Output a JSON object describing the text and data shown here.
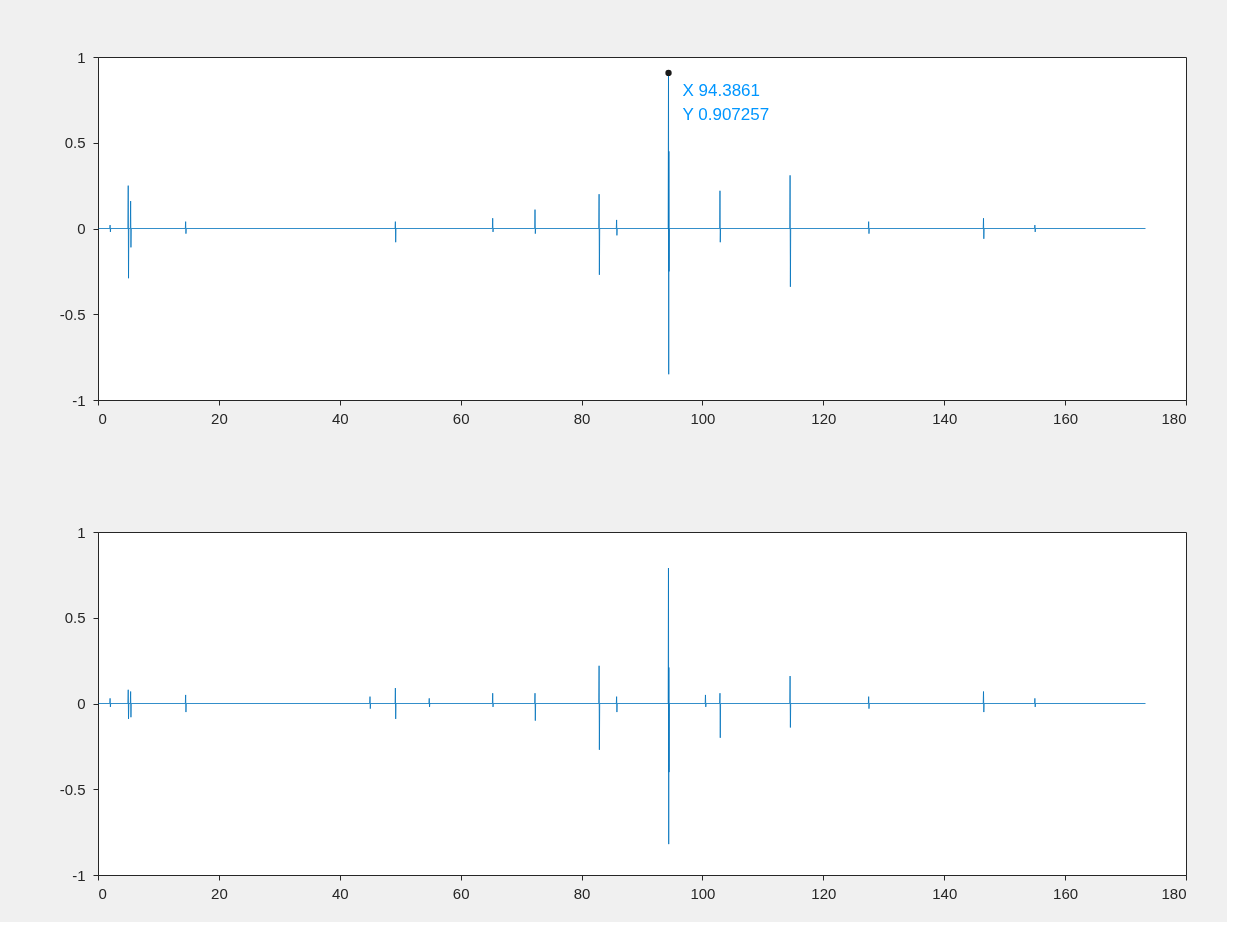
{
  "chart_data": [
    {
      "type": "line",
      "xlim": [
        0,
        180
      ],
      "xticks": [
        0,
        20,
        40,
        60,
        80,
        100,
        120,
        140,
        160,
        180
      ],
      "ylim": [
        -1,
        1
      ],
      "yticks": [
        -1,
        -0.5,
        0,
        0.5,
        1
      ],
      "grid": false,
      "annotations": [
        {
          "text": "X 94.3861\nY 0.907257",
          "x": 94.3861,
          "y": 0.907257
        }
      ],
      "series": [
        {
          "color": "#0072bd",
          "x": [
            0.1,
            1.95,
            2.0,
            2.05,
            2.1,
            4.95,
            5.0,
            5.05,
            5.1,
            5.35,
            5.4,
            5.45,
            5.5,
            14.45,
            14.5,
            14.55,
            14.6,
            49.15,
            49.2,
            49.25,
            49.3,
            65.25,
            65.3,
            65.35,
            65.4,
            72.25,
            72.3,
            72.35,
            72.4,
            82.85,
            82.9,
            82.95,
            83.0,
            85.75,
            85.8,
            85.85,
            85.9,
            94.33,
            94.3861,
            94.42,
            94.45,
            94.48,
            94.52,
            102.85,
            102.9,
            102.95,
            103.0,
            114.45,
            114.5,
            114.55,
            114.6,
            127.45,
            127.5,
            127.55,
            127.6,
            146.45,
            146.5,
            146.55,
            146.6,
            154.95,
            155.0,
            155.05,
            155.1,
            173.3
          ],
          "values": [
            0,
            0,
            0.02,
            -0.02,
            0,
            0,
            0.25,
            -0.29,
            0,
            0,
            0.16,
            -0.11,
            0,
            0,
            0.04,
            -0.03,
            0,
            0,
            0.04,
            -0.08,
            0,
            0,
            0.06,
            -0.02,
            0,
            0,
            0.11,
            -0.03,
            0,
            0,
            0.2,
            -0.27,
            0,
            0,
            0.05,
            -0.04,
            0,
            0,
            0.907257,
            -0.85,
            0.45,
            -0.25,
            0,
            0,
            0.22,
            -0.08,
            0,
            0,
            0.31,
            -0.34,
            0,
            0,
            0.04,
            -0.03,
            0,
            0,
            0.06,
            -0.06,
            0,
            0,
            0.02,
            -0.02,
            0,
            0
          ]
        }
      ]
    },
    {
      "type": "line",
      "xlim": [
        0,
        180
      ],
      "xticks": [
        0,
        20,
        40,
        60,
        80,
        100,
        120,
        140,
        160,
        180
      ],
      "ylim": [
        -1,
        1
      ],
      "yticks": [
        -1,
        -0.5,
        0,
        0.5,
        1
      ],
      "grid": false,
      "series": [
        {
          "color": "#0072bd",
          "x": [
            0.1,
            1.95,
            2.0,
            2.05,
            2.1,
            4.95,
            5.0,
            5.05,
            5.1,
            5.35,
            5.4,
            5.45,
            5.5,
            14.45,
            14.5,
            14.55,
            14.6,
            44.95,
            45.0,
            45.05,
            45.1,
            49.15,
            49.2,
            49.25,
            49.3,
            54.75,
            54.8,
            54.85,
            54.9,
            65.25,
            65.3,
            65.35,
            65.4,
            72.25,
            72.3,
            72.35,
            72.4,
            82.85,
            82.9,
            82.95,
            83.0,
            85.75,
            85.8,
            85.85,
            85.9,
            94.33,
            94.38,
            94.42,
            94.45,
            94.48,
            94.52,
            100.45,
            100.5,
            100.55,
            100.6,
            102.85,
            102.9,
            102.95,
            103.0,
            114.45,
            114.5,
            114.55,
            114.6,
            127.45,
            127.5,
            127.55,
            127.6,
            146.45,
            146.5,
            146.55,
            146.6,
            154.95,
            155.0,
            155.05,
            155.1,
            173.3
          ],
          "values": [
            0,
            0,
            0.03,
            -0.02,
            0,
            0,
            0.08,
            -0.09,
            0,
            0,
            0.07,
            -0.08,
            0,
            0,
            0.05,
            -0.05,
            0,
            0,
            0.04,
            -0.03,
            0,
            0,
            0.09,
            -0.09,
            0,
            0,
            0.03,
            -0.02,
            0,
            0,
            0.06,
            -0.02,
            0,
            0,
            0.06,
            -0.1,
            0,
            0,
            0.22,
            -0.27,
            0,
            0,
            0.04,
            -0.05,
            0,
            0,
            0.79,
            -0.82,
            0.21,
            -0.4,
            0,
            0,
            0.05,
            -0.02,
            0,
            0,
            0.06,
            -0.2,
            0,
            0,
            0.16,
            -0.14,
            0,
            0,
            0.04,
            -0.03,
            0,
            0,
            0.07,
            -0.05,
            0,
            0,
            0.03,
            -0.02,
            0,
            0
          ]
        }
      ]
    }
  ]
}
